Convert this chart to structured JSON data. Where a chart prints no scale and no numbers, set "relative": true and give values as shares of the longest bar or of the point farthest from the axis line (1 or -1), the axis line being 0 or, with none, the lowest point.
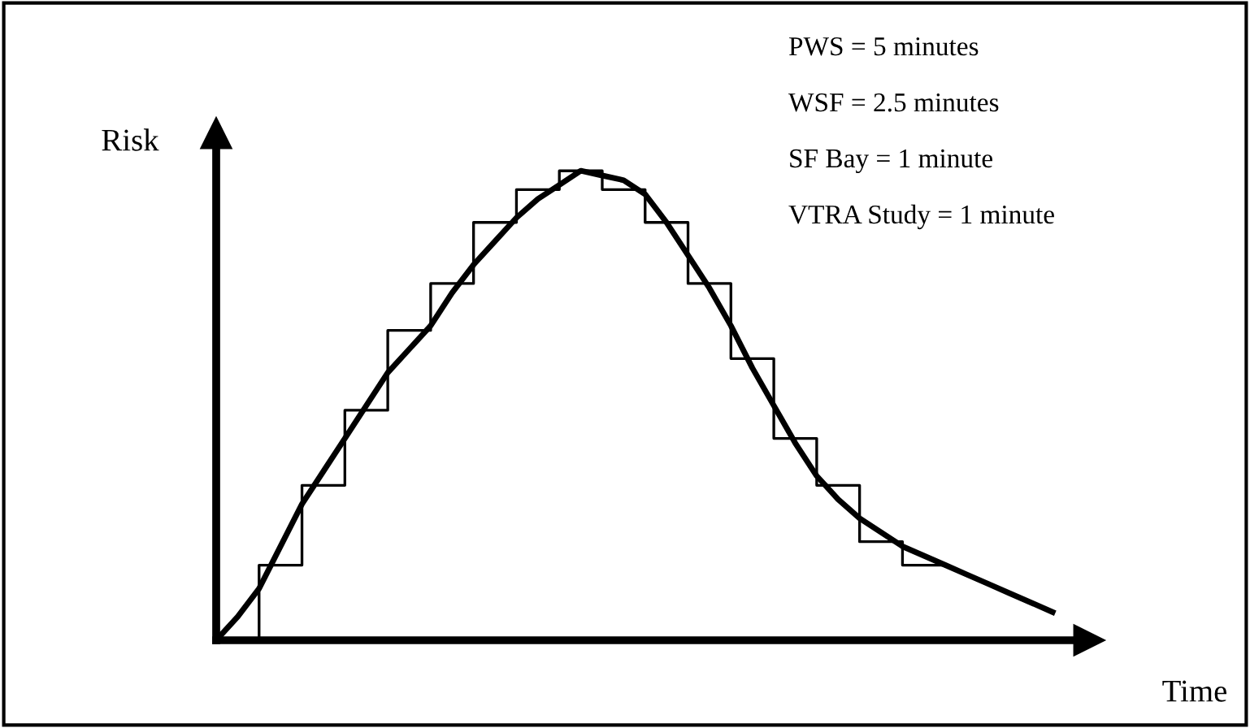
{
  "chart_data": {
    "type": "line",
    "relative": true,
    "xlabel": "Time",
    "ylabel": "Risk",
    "categories": [
      null,
      null,
      null,
      null,
      null,
      null,
      null,
      null,
      null,
      null,
      null,
      null,
      null,
      null,
      null,
      null,
      null,
      null,
      null,
      null,
      null,
      null,
      null,
      null,
      null,
      null,
      null,
      null,
      null,
      null,
      null,
      null,
      null,
      null,
      null,
      null,
      null,
      null,
      null,
      null
    ],
    "series": [
      {
        "color": "#000000",
        "values": [
          0,
          0.05,
          0.11,
          0.2,
          0.29,
          0.36,
          0.43,
          0.5,
          0.57,
          0.62,
          0.67,
          0.74,
          0.8,
          0.85,
          0.9,
          0.94,
          0.97,
          1.0,
          0.99,
          0.98,
          0.95,
          0.89,
          0.82,
          0.75,
          0.67,
          0.58,
          0.5,
          0.42,
          0.35,
          0.3,
          0.26,
          0.23,
          0.2,
          0.18,
          0.16,
          0.14,
          0.12,
          0.1,
          0.08,
          0.06
        ]
      },
      {
        "type": "step",
        "color": "#000000",
        "values": [
          null,
          0,
          0.16,
          0.16,
          0.33,
          0.33,
          0.49,
          0.49,
          0.66,
          0.66,
          0.76,
          0.76,
          0.89,
          0.89,
          0.96,
          0.96,
          1.0,
          1.0,
          0.96,
          0.96,
          0.89,
          0.89,
          0.76,
          0.76,
          0.6,
          0.6,
          0.43,
          0.43,
          0.33,
          0.33,
          0.21,
          0.21,
          0.16,
          0.16,
          0.16,
          null,
          null,
          null,
          null,
          null
        ]
      }
    ],
    "annotations": [
      "PWS = 5 minutes",
      "WSF = 2.5 minutes",
      "SF Bay = 1 minute",
      "VTRA Study = 1 minute"
    ],
    "grid": false,
    "legend": false
  }
}
